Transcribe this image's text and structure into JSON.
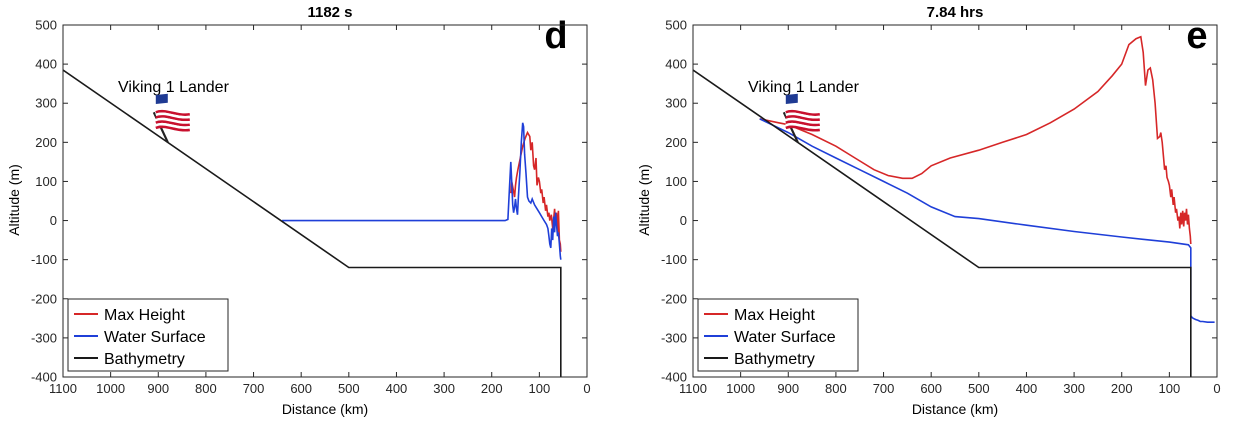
{
  "chart_data": [
    {
      "type": "line",
      "panel_letter": "d",
      "title": "1182 s",
      "xlabel": "Distance (km)",
      "ylabel": "Altitude (m)",
      "xlim": [
        1100,
        0
      ],
      "ylim": [
        -400,
        500
      ],
      "x_reversed": true,
      "xticks": [
        1100,
        1000,
        900,
        800,
        700,
        600,
        500,
        400,
        300,
        200,
        100,
        0
      ],
      "yticks": [
        -400,
        -300,
        -200,
        -100,
        0,
        100,
        200,
        300,
        400,
        500
      ],
      "annotation": "Viking 1 Lander",
      "flag_icon": "us-flag-icon",
      "legend_position": "bottom-left",
      "series": [
        {
          "name": "Max Height",
          "color": "#d62728",
          "x": [
            160,
            158,
            155,
            152,
            150,
            148,
            145,
            140,
            135,
            130,
            125,
            120,
            118,
            115,
            112,
            110,
            107,
            105,
            102,
            100,
            97,
            95,
            92,
            90,
            87,
            85,
            82,
            80,
            78,
            75,
            72,
            70,
            68,
            66,
            64,
            62,
            60,
            58,
            56,
            55
          ],
          "y": [
            70,
            100,
            80,
            60,
            90,
            110,
            130,
            160,
            190,
            210,
            225,
            215,
            180,
            200,
            140,
            130,
            160,
            90,
            110,
            100,
            70,
            80,
            45,
            60,
            25,
            40,
            10,
            20,
            0,
            15,
            -20,
            5,
            30,
            -10,
            20,
            -30,
            25,
            -50,
            -60,
            -80
          ]
        },
        {
          "name": "Water Surface",
          "color": "#1f3fd8",
          "x": [
            640,
            600,
            500,
            400,
            300,
            200,
            172,
            166,
            163,
            160,
            158,
            156,
            154,
            152,
            150,
            148,
            146,
            144,
            141,
            138,
            135,
            133,
            131,
            128,
            125,
            122,
            118,
            115,
            110,
            105,
            100,
            95,
            90,
            85,
            82,
            80,
            78,
            76,
            74,
            72,
            70,
            68,
            66,
            64,
            62,
            60,
            58,
            56,
            55
          ],
          "y": [
            0,
            0,
            0,
            0,
            0,
            0,
            0,
            3,
            80,
            150,
            100,
            40,
            20,
            35,
            55,
            30,
            15,
            60,
            120,
            200,
            250,
            240,
            170,
            120,
            60,
            50,
            45,
            55,
            40,
            30,
            20,
            10,
            0,
            -10,
            -20,
            -40,
            -60,
            -70,
            -20,
            -50,
            10,
            -30,
            20,
            -10,
            -40,
            -30,
            -60,
            -90,
            -100
          ]
        },
        {
          "name": "Bathymetry",
          "color": "#1a1a1a",
          "x": [
            1100,
            500,
            55,
            55
          ],
          "y": [
            385,
            -120,
            -120,
            -400
          ]
        }
      ]
    },
    {
      "type": "line",
      "panel_letter": "e",
      "title": "7.84 hrs",
      "xlabel": "Distance (km)",
      "ylabel": "Altitude (m)",
      "xlim": [
        1100,
        0
      ],
      "ylim": [
        -400,
        500
      ],
      "x_reversed": true,
      "xticks": [
        1100,
        1000,
        900,
        800,
        700,
        600,
        500,
        400,
        300,
        200,
        100,
        0
      ],
      "yticks": [
        -400,
        -300,
        -200,
        -100,
        0,
        100,
        200,
        300,
        400,
        500
      ],
      "annotation": "Viking 1 Lander",
      "flag_icon": "us-flag-icon",
      "legend_position": "bottom-left",
      "series": [
        {
          "name": "Max Height",
          "color": "#d62728",
          "x": [
            960,
            940,
            920,
            900,
            880,
            850,
            800,
            760,
            720,
            690,
            660,
            640,
            620,
            600,
            560,
            500,
            450,
            400,
            350,
            300,
            250,
            220,
            200,
            185,
            170,
            160,
            155,
            150,
            145,
            140,
            135,
            130,
            125,
            120,
            118,
            115,
            112,
            110,
            107,
            105,
            102,
            100,
            97,
            95,
            92,
            90,
            87,
            85,
            82,
            80,
            78,
            76,
            74,
            72,
            70,
            68,
            66,
            64,
            62,
            60,
            58,
            56,
            55
          ],
          "y": [
            260,
            255,
            250,
            245,
            235,
            220,
            190,
            160,
            130,
            115,
            108,
            108,
            120,
            140,
            160,
            180,
            200,
            220,
            250,
            285,
            330,
            370,
            400,
            450,
            465,
            470,
            430,
            345,
            385,
            390,
            360,
            300,
            210,
            215,
            225,
            200,
            160,
            130,
            140,
            110,
            100,
            90,
            60,
            80,
            40,
            60,
            20,
            30,
            0,
            10,
            -20,
            20,
            -10,
            25,
            -15,
            20,
            0,
            30,
            -10,
            15,
            -20,
            -40,
            -60
          ]
        },
        {
          "name": "Water Surface",
          "color": "#1f3fd8",
          "x": [
            960,
            900,
            850,
            800,
            750,
            700,
            650,
            600,
            550,
            500,
            400,
            300,
            200,
            100,
            60,
            56,
            55,
            55,
            54,
            52,
            50,
            45,
            40,
            35,
            30,
            20,
            10,
            5
          ],
          "y": [
            260,
            225,
            190,
            160,
            130,
            100,
            70,
            35,
            10,
            5,
            -12,
            -28,
            -42,
            -55,
            -62,
            -68,
            -70,
            -250,
            -245,
            -248,
            -250,
            -253,
            -255,
            -258,
            -258,
            -260,
            -260,
            -260
          ]
        },
        {
          "name": "Bathymetry",
          "color": "#1a1a1a",
          "x": [
            1100,
            500,
            55,
            55
          ],
          "y": [
            385,
            -120,
            -120,
            -400
          ]
        }
      ]
    }
  ]
}
